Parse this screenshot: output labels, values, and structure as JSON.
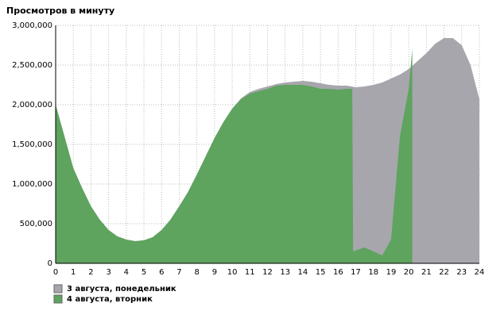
{
  "chart_data": {
    "type": "area",
    "title": "Просмотров в минуту",
    "xlim": [
      0,
      24
    ],
    "xticks": [
      0,
      1,
      2,
      3,
      4,
      5,
      6,
      7,
      8,
      9,
      10,
      11,
      12,
      13,
      14,
      15,
      16,
      17,
      18,
      19,
      20,
      21,
      22,
      23,
      24
    ],
    "ylim": [
      0,
      3000000
    ],
    "yticks": [
      0,
      {
        "value": 500000,
        "label": "500,000"
      },
      {
        "value": 1000000,
        "label": "1,000,000"
      },
      {
        "value": 1500000,
        "label": "1,500,000"
      },
      {
        "value": 2000000,
        "label": "2,000,000"
      },
      {
        "value": 2500000,
        "label": "2,500,000"
      },
      {
        "value": 3000000,
        "label": "3,000,000"
      }
    ],
    "grid": true,
    "legend": "bottom-left",
    "series": [
      {
        "name": "3 августа, понедельник",
        "color": "#a7a6ad",
        "x": [
          0,
          0.5,
          1,
          1.5,
          2,
          2.5,
          3,
          3.5,
          4,
          4.5,
          5,
          5.5,
          6,
          6.5,
          7,
          7.5,
          8,
          8.5,
          9,
          9.5,
          10,
          10.5,
          11,
          11.5,
          12,
          12.5,
          13,
          13.5,
          14,
          14.5,
          15,
          15.5,
          16,
          16.5,
          17,
          17.5,
          18,
          18.5,
          19,
          19.5,
          20,
          20.5,
          21,
          21.5,
          22,
          22.5,
          23,
          23.5,
          24
        ],
        "values": [
          2000000,
          1600000,
          1200000,
          950000,
          720000,
          550000,
          420000,
          340000,
          300000,
          280000,
          290000,
          330000,
          420000,
          550000,
          720000,
          900000,
          1120000,
          1350000,
          1580000,
          1780000,
          1950000,
          2080000,
          2160000,
          2200000,
          2230000,
          2260000,
          2280000,
          2290000,
          2300000,
          2290000,
          2270000,
          2250000,
          2240000,
          2240000,
          2220000,
          2230000,
          2250000,
          2280000,
          2330000,
          2380000,
          2450000,
          2550000,
          2650000,
          2770000,
          2840000,
          2840000,
          2750000,
          2500000,
          2070000
        ]
      },
      {
        "name": "4 августа, вторник",
        "color": "#5ea35e",
        "x": [
          0,
          0.5,
          1,
          1.5,
          2,
          2.5,
          3,
          3.5,
          4,
          4.5,
          5,
          5.5,
          6,
          6.5,
          7,
          7.5,
          8,
          8.5,
          9,
          9.5,
          10,
          10.5,
          11,
          11.5,
          12,
          12.5,
          13,
          13.5,
          14,
          14.5,
          15,
          15.5,
          16,
          16.5,
          16.8,
          16.85,
          17.5,
          18,
          18.5,
          19,
          19.5,
          20,
          20.2
        ],
        "values": [
          2000000,
          1600000,
          1200000,
          950000,
          720000,
          550000,
          420000,
          340000,
          300000,
          280000,
          290000,
          330000,
          420000,
          550000,
          720000,
          900000,
          1120000,
          1350000,
          1580000,
          1780000,
          1950000,
          2070000,
          2140000,
          2170000,
          2200000,
          2240000,
          2250000,
          2250000,
          2250000,
          2230000,
          2200000,
          2200000,
          2190000,
          2200000,
          2200000,
          150000,
          200000,
          150000,
          100000,
          300000,
          1600000,
          2200000,
          2700000
        ]
      }
    ]
  }
}
